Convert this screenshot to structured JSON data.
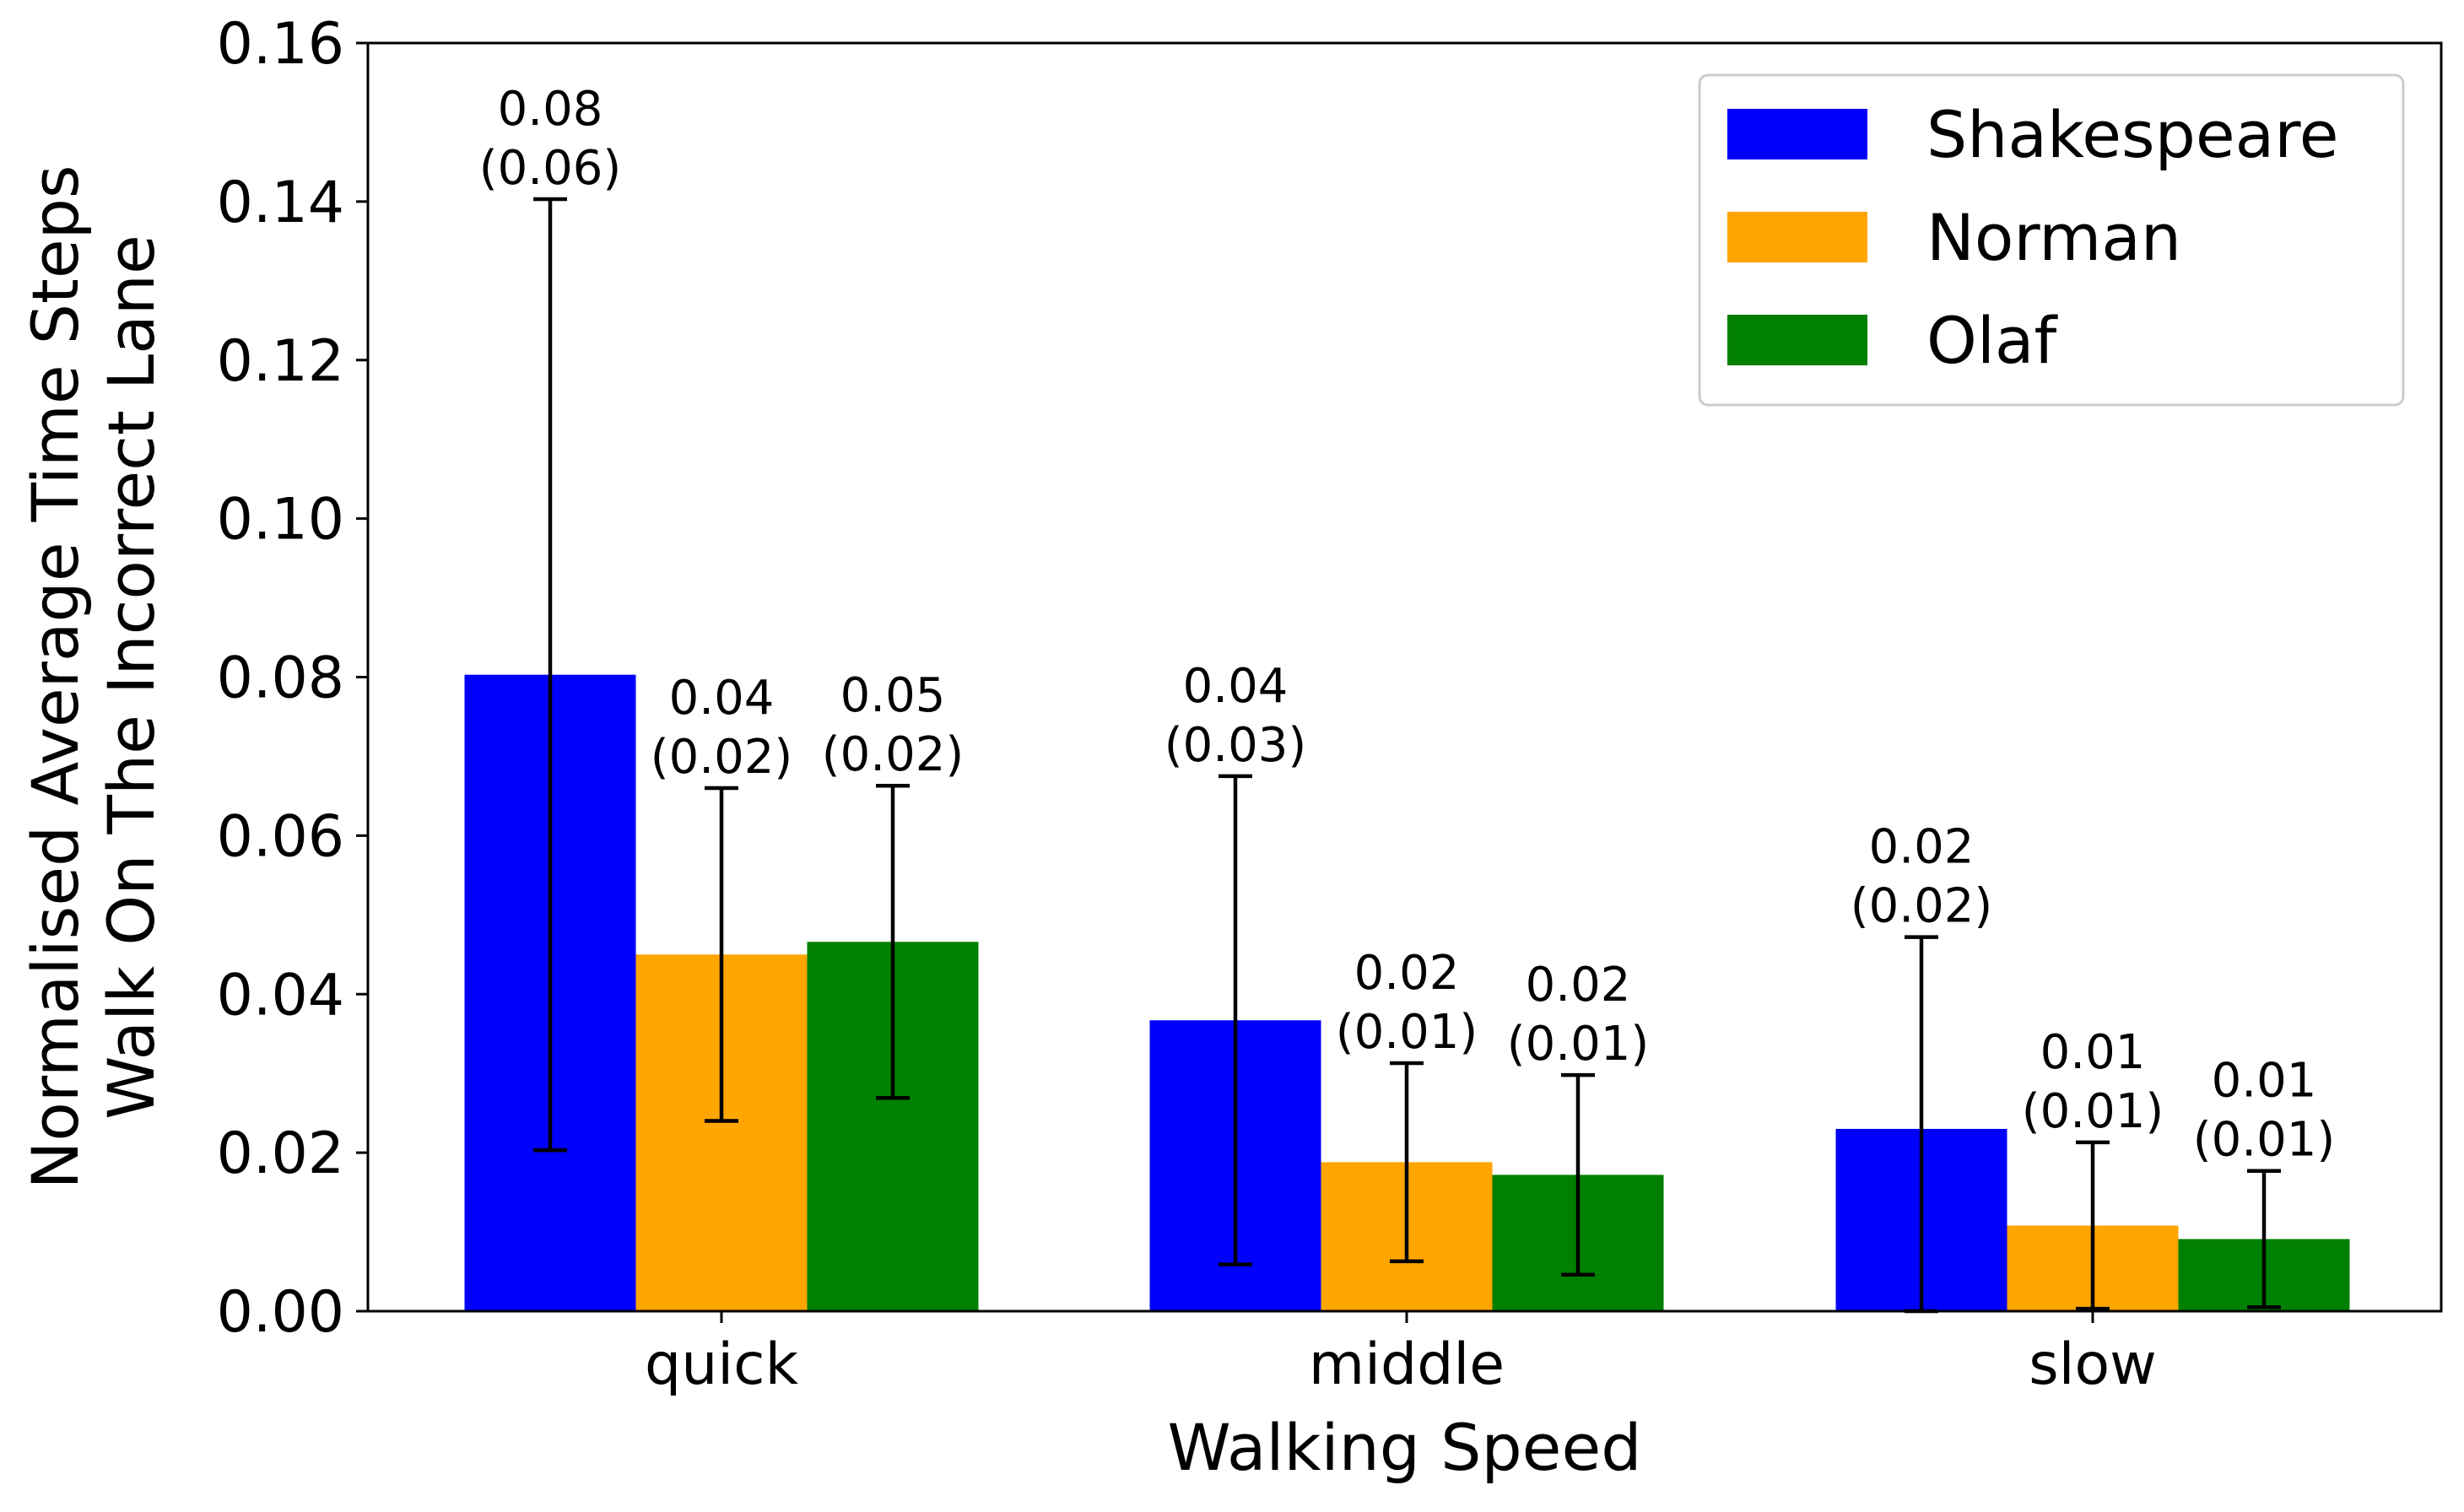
{
  "chart_data": {
    "type": "bar",
    "xlabel": "Walking Speed",
    "ylabel_lines": [
      "Normalised Average Time Steps",
      "Walk On The Incorrect Lane"
    ],
    "categories": [
      "quick",
      "middle",
      "slow"
    ],
    "ylim": [
      0,
      0.16
    ],
    "yticks": [
      0,
      0.02,
      0.04,
      0.06,
      0.08,
      0.1,
      0.12,
      0.14,
      0.16
    ],
    "ytick_labels": [
      "0.00",
      "0.02",
      "0.04",
      "0.06",
      "0.08",
      "0.10",
      "0.12",
      "0.14",
      "0.16"
    ],
    "grid": false,
    "legend_position": "top-right",
    "series": [
      {
        "name": "Shakespeare",
        "color": "#0000ff",
        "values": [
          0.0803,
          0.0367,
          0.023
        ],
        "errors": [
          0.06,
          0.0308,
          0.0242
        ],
        "labels": [
          [
            "0.08",
            "(0.06)"
          ],
          [
            "0.04",
            "(0.03)"
          ],
          [
            "0.02",
            "(0.02)"
          ]
        ]
      },
      {
        "name": "Norman",
        "color": "#ffa500",
        "values": [
          0.045,
          0.0188,
          0.0108
        ],
        "errors": [
          0.021,
          0.0125,
          0.0105
        ],
        "labels": [
          [
            "0.04",
            "(0.02)"
          ],
          [
            "0.02",
            "(0.01)"
          ],
          [
            "0.01",
            "(0.01)"
          ]
        ]
      },
      {
        "name": "Olaf",
        "color": "#008000",
        "values": [
          0.0466,
          0.0172,
          0.0091
        ],
        "errors": [
          0.0197,
          0.0126,
          0.0086
        ],
        "labels": [
          [
            "0.05",
            "(0.02)"
          ],
          [
            "0.02",
            "(0.01)"
          ],
          [
            "0.01",
            "(0.01)"
          ]
        ]
      }
    ]
  }
}
